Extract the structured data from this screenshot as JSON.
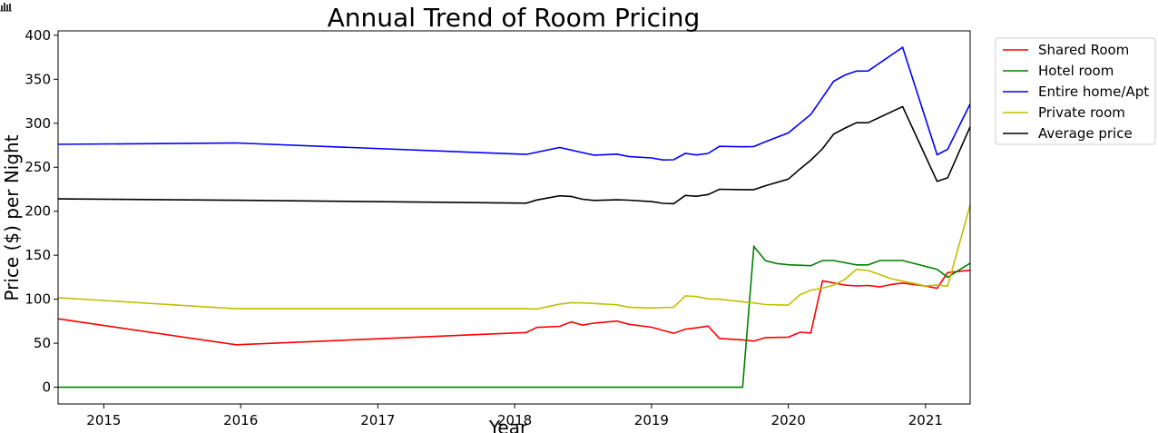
{
  "chart_data": {
    "type": "line",
    "title": "Annual Trend of Room Pricing",
    "xlabel": "Year",
    "ylabel": "Price ($) per Night",
    "xlim": [
      "2014-09-01",
      "2021-04-30"
    ],
    "ylim": [
      -19,
      405
    ],
    "x_ticks": [
      "2015",
      "2016",
      "2017",
      "2018",
      "2019",
      "2020",
      "2021"
    ],
    "y_ticks": [
      0,
      50,
      100,
      150,
      200,
      250,
      300,
      350,
      400
    ],
    "grid": false,
    "legend_position": "outside-top-right",
    "series": [
      {
        "name": "Shared Room",
        "color": "#ff0000",
        "points": [
          [
            "2014-09-01",
            77.8
          ],
          [
            "2015-12-20",
            48.3
          ],
          [
            "2018-02-01",
            62.2
          ],
          [
            "2018-03-01",
            68.0
          ],
          [
            "2018-05-01",
            69.2
          ],
          [
            "2018-06-01",
            74.3
          ],
          [
            "2018-07-01",
            70.5
          ],
          [
            "2018-08-01",
            72.9
          ],
          [
            "2018-10-01",
            75.2
          ],
          [
            "2018-11-01",
            71.6
          ],
          [
            "2019-01-01",
            68.2
          ],
          [
            "2019-02-01",
            64.6
          ],
          [
            "2019-03-01",
            61.3
          ],
          [
            "2019-04-01",
            66.0
          ],
          [
            "2019-05-01",
            67.4
          ],
          [
            "2019-06-01",
            69.5
          ],
          [
            "2019-07-01",
            55.5
          ],
          [
            "2019-09-01",
            53.8
          ],
          [
            "2019-10-01",
            52.4
          ],
          [
            "2019-11-01",
            56.4
          ],
          [
            "2020-01-01",
            56.9
          ],
          [
            "2020-02-01",
            62.5
          ],
          [
            "2020-03-01",
            61.7
          ],
          [
            "2020-04-01",
            121.0
          ],
          [
            "2020-06-01",
            116.0
          ],
          [
            "2020-07-01",
            115.1
          ],
          [
            "2020-08-01",
            115.6
          ],
          [
            "2020-09-01",
            114.0
          ],
          [
            "2020-10-01",
            116.8
          ],
          [
            "2020-11-01",
            118.4
          ],
          [
            "2021-01-01",
            115.0
          ],
          [
            "2021-02-01",
            112.4
          ],
          [
            "2021-03-01",
            130.3
          ],
          [
            "2021-04-30",
            133.0
          ]
        ]
      },
      {
        "name": "Hotel room",
        "color": "#008000",
        "points": [
          [
            "2014-09-01",
            0
          ],
          [
            "2019-09-01",
            0
          ],
          [
            "2019-10-01",
            159.9
          ],
          [
            "2019-11-01",
            143.8
          ],
          [
            "2019-12-01",
            140.6
          ],
          [
            "2020-01-01",
            139.2
          ],
          [
            "2020-03-01",
            138.1
          ],
          [
            "2020-04-01",
            144.0
          ],
          [
            "2020-05-01",
            144.0
          ],
          [
            "2020-07-01",
            139.0
          ],
          [
            "2020-08-01",
            139.0
          ],
          [
            "2020-09-01",
            144.0
          ],
          [
            "2020-10-01",
            144.0
          ],
          [
            "2020-11-01",
            144.0
          ],
          [
            "2021-02-01",
            134.0
          ],
          [
            "2021-03-01",
            125.0
          ],
          [
            "2021-04-30",
            141.0
          ]
        ]
      },
      {
        "name": "Entire home/Apt",
        "color": "#0000ff",
        "points": [
          [
            "2014-09-01",
            276.0
          ],
          [
            "2015-12-20",
            277.6
          ],
          [
            "2018-02-01",
            264.6
          ],
          [
            "2018-05-01",
            272.4
          ],
          [
            "2018-07-01",
            266.7
          ],
          [
            "2018-08-01",
            263.8
          ],
          [
            "2018-10-01",
            264.9
          ],
          [
            "2018-11-01",
            262.2
          ],
          [
            "2019-01-01",
            260.6
          ],
          [
            "2019-02-01",
            258.3
          ],
          [
            "2019-03-01",
            258.5
          ],
          [
            "2019-04-01",
            265.7
          ],
          [
            "2019-05-01",
            264.0
          ],
          [
            "2019-06-01",
            265.7
          ],
          [
            "2019-07-01",
            273.8
          ],
          [
            "2019-09-01",
            273.3
          ],
          [
            "2019-10-01",
            273.6
          ],
          [
            "2019-11-01",
            279.0
          ],
          [
            "2020-01-01",
            289.0
          ],
          [
            "2020-03-01",
            310.0
          ],
          [
            "2020-04-01",
            329.3
          ],
          [
            "2020-05-01",
            347.7
          ],
          [
            "2020-06-01",
            355.0
          ],
          [
            "2020-07-01",
            359.3
          ],
          [
            "2020-08-01",
            359.4
          ],
          [
            "2020-11-01",
            386.3
          ],
          [
            "2021-02-01",
            264.2
          ],
          [
            "2021-03-01",
            270.4
          ],
          [
            "2021-04-30",
            322.0
          ]
        ]
      },
      {
        "name": "Private room",
        "color": "#bfbf00",
        "points": [
          [
            "2014-09-01",
            101.8
          ],
          [
            "2015-12-20",
            89.2
          ],
          [
            "2018-02-01",
            89.3
          ],
          [
            "2018-03-01",
            88.9
          ],
          [
            "2018-05-01",
            94.4
          ],
          [
            "2018-06-01",
            96.1
          ],
          [
            "2018-07-01",
            95.8
          ],
          [
            "2018-08-01",
            95.2
          ],
          [
            "2018-10-01",
            93.7
          ],
          [
            "2018-11-01",
            91.0
          ],
          [
            "2019-01-01",
            90.0
          ],
          [
            "2019-03-01",
            90.9
          ],
          [
            "2019-04-01",
            103.9
          ],
          [
            "2019-05-01",
            103.0
          ],
          [
            "2019-06-01",
            100.4
          ],
          [
            "2019-07-01",
            100.1
          ],
          [
            "2019-09-01",
            97.2
          ],
          [
            "2019-10-01",
            95.8
          ],
          [
            "2019-11-01",
            94.0
          ],
          [
            "2020-01-01",
            93.2
          ],
          [
            "2020-02-01",
            105.0
          ],
          [
            "2020-03-01",
            110.4
          ],
          [
            "2020-04-01",
            112.6
          ],
          [
            "2020-05-01",
            116.0
          ],
          [
            "2020-06-01",
            123.0
          ],
          [
            "2020-07-01",
            134.0
          ],
          [
            "2020-08-01",
            132.6
          ],
          [
            "2020-09-01",
            128.0
          ],
          [
            "2020-10-01",
            123.4
          ],
          [
            "2020-12-01",
            118.0
          ],
          [
            "2021-01-01",
            115.0
          ],
          [
            "2021-02-01",
            116.0
          ],
          [
            "2021-03-01",
            115.0
          ],
          [
            "2021-04-30",
            207.0
          ]
        ]
      },
      {
        "name": "Average price",
        "color": "#000000",
        "points": [
          [
            "2014-09-01",
            214.0
          ],
          [
            "2015-12-20",
            212.5
          ],
          [
            "2018-02-01",
            209.2
          ],
          [
            "2018-03-01",
            212.8
          ],
          [
            "2018-05-01",
            217.6
          ],
          [
            "2018-06-01",
            216.8
          ],
          [
            "2018-07-01",
            213.6
          ],
          [
            "2018-08-01",
            212.3
          ],
          [
            "2018-10-01",
            213.0
          ],
          [
            "2018-11-01",
            212.6
          ],
          [
            "2019-01-01",
            211.0
          ],
          [
            "2019-02-01",
            209.0
          ],
          [
            "2019-03-01",
            208.6
          ],
          [
            "2019-04-01",
            218.0
          ],
          [
            "2019-05-01",
            217.0
          ],
          [
            "2019-06-01",
            219.0
          ],
          [
            "2019-07-01",
            225.0
          ],
          [
            "2019-09-01",
            224.6
          ],
          [
            "2019-10-01",
            224.6
          ],
          [
            "2019-11-01",
            229.0
          ],
          [
            "2020-01-01",
            236.5
          ],
          [
            "2020-02-01",
            248.0
          ],
          [
            "2020-03-01",
            258.0
          ],
          [
            "2020-04-01",
            271.0
          ],
          [
            "2020-05-01",
            287.6
          ],
          [
            "2020-06-01",
            294.6
          ],
          [
            "2020-07-01",
            300.6
          ],
          [
            "2020-08-01",
            300.6
          ],
          [
            "2020-11-01",
            319.0
          ],
          [
            "2021-02-01",
            234.0
          ],
          [
            "2021-03-01",
            238.0
          ],
          [
            "2021-04-30",
            296.0
          ]
        ]
      }
    ]
  },
  "toolbar": {
    "icon": "bar-chart-icon"
  }
}
